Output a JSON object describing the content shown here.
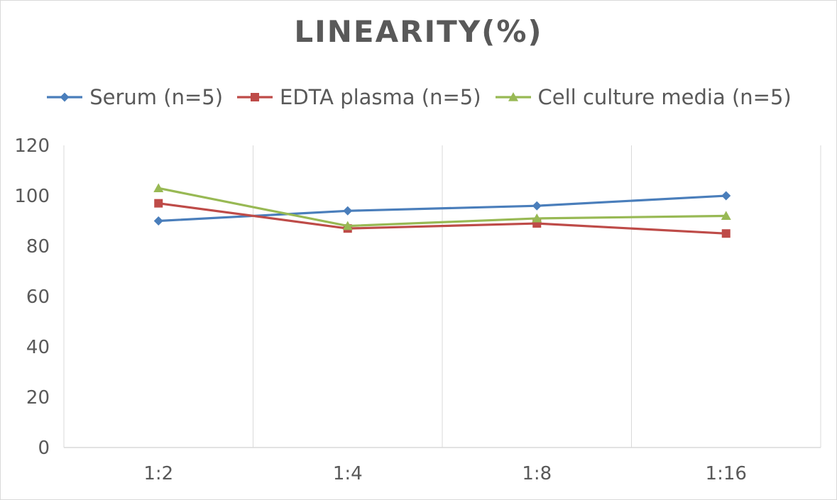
{
  "chart_data": {
    "type": "line",
    "title": "LINEARITY(%)",
    "categories": [
      "1:2",
      "1:4",
      "1:8",
      "1:16"
    ],
    "series": [
      {
        "name": "Serum (n=5)",
        "values": [
          90,
          94,
          96,
          100
        ],
        "color": "#4a7ebb",
        "marker": "diamond"
      },
      {
        "name": "EDTA plasma (n=5)",
        "values": [
          97,
          87,
          89,
          85
        ],
        "color": "#be4b48",
        "marker": "square"
      },
      {
        "name": "Cell culture media (n=5)",
        "values": [
          103,
          88,
          91,
          92
        ],
        "color": "#98b954",
        "marker": "triangle"
      }
    ],
    "y_ticks": [
      "0",
      "20",
      "40",
      "60",
      "80",
      "100",
      "120"
    ],
    "ylim": [
      0,
      120
    ],
    "grid": "vertical",
    "legend_position": "top"
  }
}
